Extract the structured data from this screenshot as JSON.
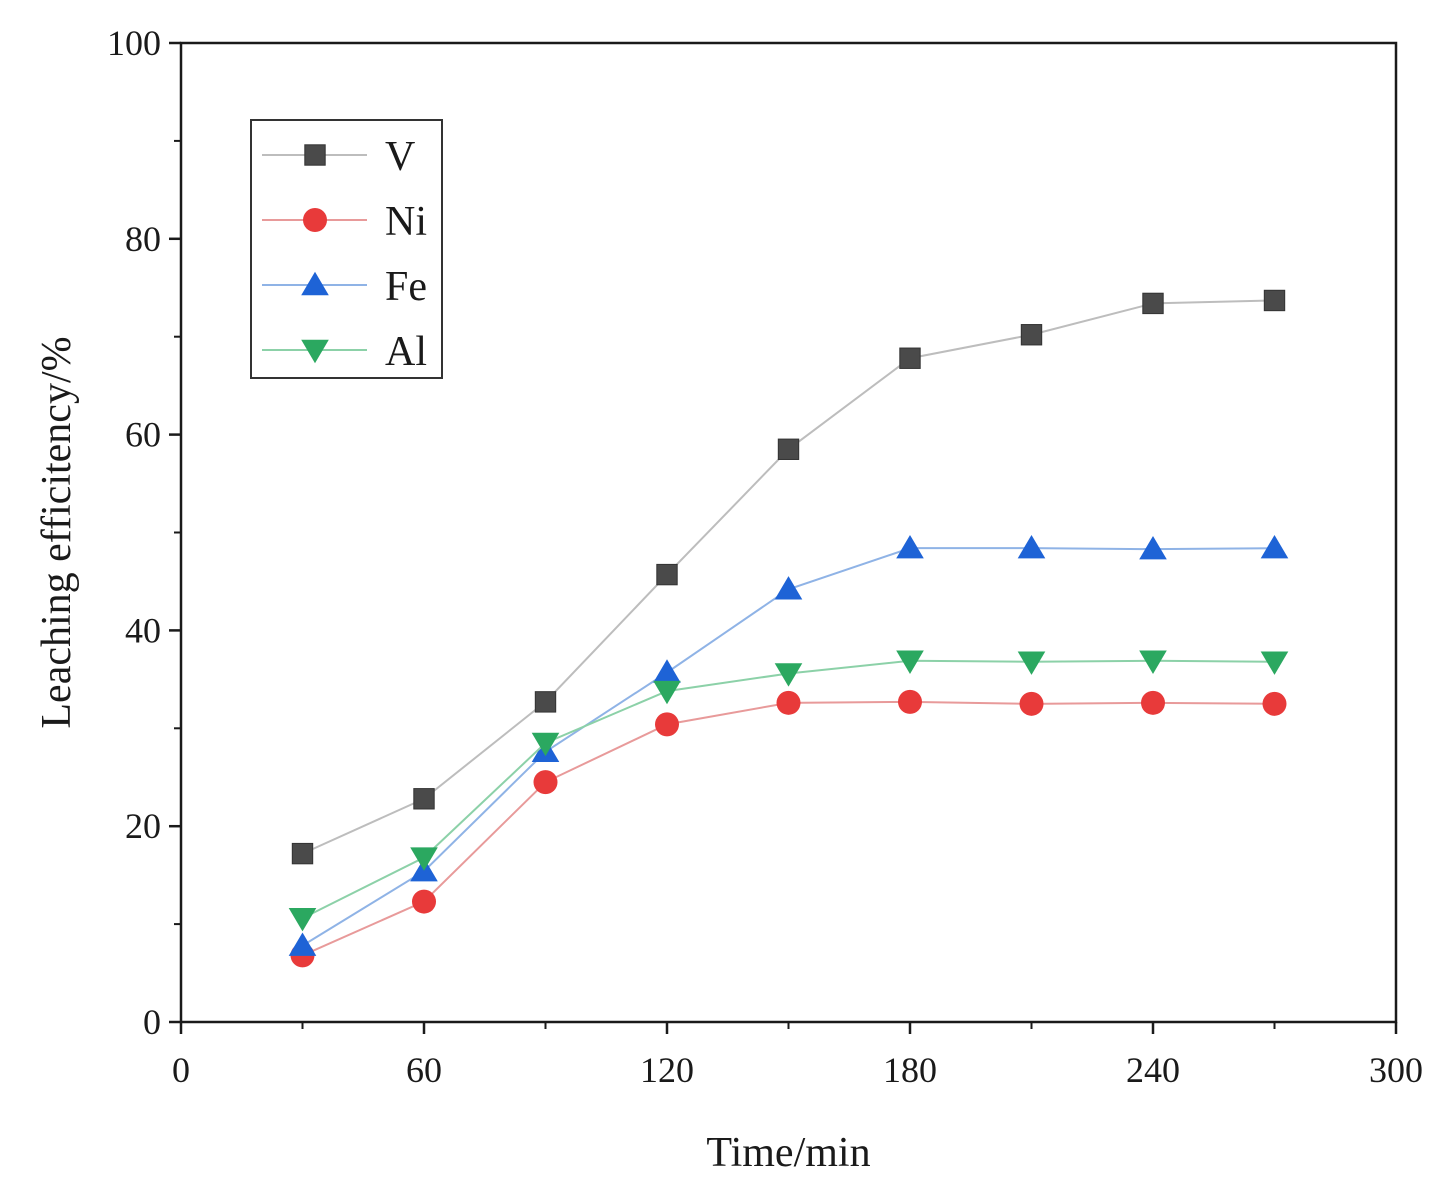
{
  "chart_data": {
    "type": "line",
    "title": "",
    "xlabel": "Time/min",
    "ylabel": "Leaching efficitency/%",
    "xlim": [
      0,
      300
    ],
    "ylim": [
      0,
      100
    ],
    "xticks": [
      0,
      60,
      120,
      180,
      240,
      300
    ],
    "xtick_labels": [
      "0",
      "60",
      "120",
      "180",
      "240",
      "300"
    ],
    "yticks": [
      0,
      20,
      40,
      60,
      80,
      100
    ],
    "ytick_labels": [
      "0",
      "20",
      "40",
      "60",
      "80",
      "100"
    ],
    "grid": false,
    "legend_position": "top-left",
    "x": [
      30,
      60,
      90,
      120,
      150,
      180,
      210,
      240,
      270
    ],
    "series": [
      {
        "name": "V",
        "marker": "square",
        "marker_color": "#4a4a4a",
        "line_color": "#bdbdbd",
        "values": [
          17.2,
          22.8,
          32.7,
          45.7,
          58.5,
          67.8,
          70.2,
          73.4,
          73.7
        ]
      },
      {
        "name": "Ni",
        "marker": "circle",
        "marker_color": "#e83a3a",
        "line_color": "#e89a9a",
        "values": [
          6.8,
          12.3,
          24.5,
          30.4,
          32.6,
          32.7,
          32.5,
          32.6,
          32.5
        ]
      },
      {
        "name": "Fe",
        "marker": "triangle-up",
        "marker_color": "#1e63d6",
        "line_color": "#8fb3e6",
        "values": [
          7.8,
          15.4,
          27.6,
          35.7,
          44.2,
          48.4,
          48.4,
          48.3,
          48.4
        ]
      },
      {
        "name": "Al",
        "marker": "triangle-down",
        "marker_color": "#2ba860",
        "line_color": "#8cd1a8",
        "values": [
          10.6,
          16.8,
          28.5,
          33.8,
          35.6,
          36.9,
          36.8,
          36.9,
          36.8
        ]
      }
    ]
  }
}
